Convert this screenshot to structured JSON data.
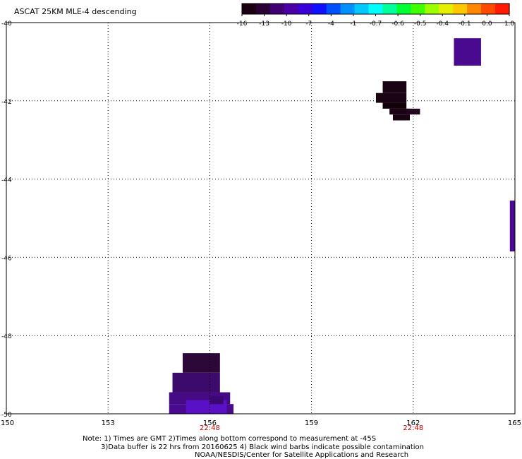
{
  "header": {
    "title": "ASCAT 25KM MLE-4 descending"
  },
  "colorbar": {
    "ticks": [
      "-16",
      "-13",
      "-10",
      "-7",
      "-4",
      "-1",
      "-0.7",
      "-0.6",
      "-0.5",
      "-0.4",
      "-0.1",
      "0.0",
      "1.0"
    ],
    "colors": [
      "#1a0012",
      "#2a0035",
      "#3f0073",
      "#4a00a6",
      "#3a00d8",
      "#1010ff",
      "#0050ff",
      "#0090ff",
      "#00c8ff",
      "#00ffff",
      "#00ff9a",
      "#00ff30",
      "#40ff00",
      "#9cff00",
      "#e4f000",
      "#ffc800",
      "#ff8800",
      "#ff4a00",
      "#ff1a00"
    ]
  },
  "map": {
    "lon_ticks": [
      "150",
      "153",
      "156",
      "159",
      "162",
      "165"
    ],
    "lat_ticks": [
      "-40",
      "-42",
      "-44",
      "-46",
      "-48",
      "-50"
    ],
    "lon_range": [
      150,
      165
    ],
    "lat_range": [
      -50,
      -40
    ],
    "time_labels": [
      {
        "lon": 156,
        "text": "22:48"
      },
      {
        "lon": 162,
        "text": "22:48"
      }
    ],
    "time_color": "#cc0000",
    "grid": "dotted"
  },
  "patches": [
    {
      "lon0": 163.2,
      "lon1": 164.0,
      "lat0": -41.1,
      "lat1": -40.4,
      "color": "#4a0a90"
    },
    {
      "lon0": 161.1,
      "lon1": 161.8,
      "lat0": -41.5,
      "lat1": -41.8,
      "color": "#1a0414"
    },
    {
      "lon0": 160.9,
      "lon1": 161.8,
      "lat0": -41.8,
      "lat1": -42.05,
      "color": "#1a0414"
    },
    {
      "lon0": 161.1,
      "lon1": 161.8,
      "lat0": -42.05,
      "lat1": -42.2,
      "color": "#120008"
    },
    {
      "lon0": 161.3,
      "lon1": 161.9,
      "lat0": -42.2,
      "lat1": -42.35,
      "color": "#1a0414"
    },
    {
      "lon0": 161.8,
      "lon1": 162.2,
      "lat0": -42.2,
      "lat1": -42.35,
      "color": "#22041e"
    },
    {
      "lon0": 161.4,
      "lon1": 161.9,
      "lat0": -42.35,
      "lat1": -42.5,
      "color": "#1a0414"
    },
    {
      "lon0": 164.85,
      "lon1": 165.0,
      "lat0": -44.55,
      "lat1": -45.85,
      "color": "#4a0a90"
    },
    {
      "lon0": 155.2,
      "lon1": 156.3,
      "lat0": -48.45,
      "lat1": -48.95,
      "color": "#2c0838"
    },
    {
      "lon0": 154.9,
      "lon1": 156.3,
      "lat0": -48.95,
      "lat1": -49.45,
      "color": "#3c0a6a"
    },
    {
      "lon0": 154.8,
      "lon1": 156.6,
      "lat0": -49.45,
      "lat1": -49.75,
      "color": "#450a84"
    },
    {
      "lon0": 154.8,
      "lon1": 156.7,
      "lat0": -49.75,
      "lat1": -50.0,
      "color": "#4a0a90"
    },
    {
      "lon0": 155.3,
      "lon1": 156.5,
      "lat0": -49.65,
      "lat1": -50.0,
      "color": "#5a10c4"
    },
    {
      "lon0": 156.0,
      "lon1": 156.4,
      "lat0": -49.55,
      "lat1": -49.75,
      "color": "#3a0870"
    }
  ],
  "footer": {
    "line1": "Note: 1) Times are GMT 2)Times along bottom correspond to measurement at -45S",
    "line2": "3)Data buffer is 22 hrs from 20160625 4) Black wind barbs indicate possible contamination",
    "line3": "NOAA/NESDIS/Center for Satellite Applications and Research"
  }
}
